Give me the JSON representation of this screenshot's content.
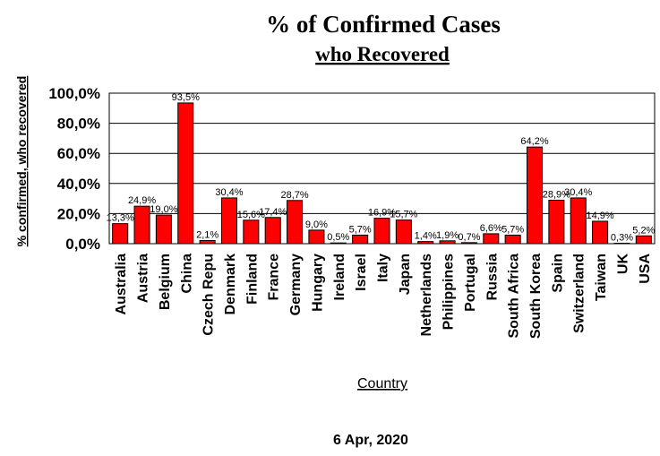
{
  "chart_data": {
    "type": "bar",
    "title": "% of Confirmed Cases",
    "subtitle": "who Recovered",
    "ylabel": "% confirmed, who recovered",
    "xlabel": "Country",
    "footer": "6 Apr, 2020",
    "ylim": [
      0,
      100
    ],
    "yticks": [
      "0,0%",
      "20,0%",
      "40,0%",
      "60,0%",
      "80,0%",
      "100,0%"
    ],
    "grid": true,
    "bar_color": "#ff0000",
    "categories": [
      "Australia",
      "Austria",
      "Belgium",
      "China",
      "Czech Repu",
      "Denmark",
      "Finland",
      "France",
      "Germany",
      "Hungary",
      "Ireland",
      "Israel",
      "Italy",
      "Japan",
      "Netherlands",
      "Philippines",
      "Portugal",
      "Russia",
      "South Africa",
      "South Korea",
      "Spain",
      "Switzerland",
      "Taiwan",
      "UK",
      "USA"
    ],
    "values": [
      13.3,
      24.9,
      19.0,
      93.5,
      2.1,
      30.4,
      15.6,
      17.4,
      28.7,
      9.0,
      0.5,
      5.7,
      16.9,
      15.7,
      1.4,
      1.9,
      0.7,
      6.6,
      5.7,
      64.2,
      28.9,
      30.4,
      14.9,
      0.3,
      5.2
    ],
    "labels": [
      "13,3%",
      "24,9%",
      "19,0%",
      "93,5%",
      "2,1%",
      "30,4%",
      "15,6%",
      "17,4%",
      "28,7%",
      "9,0%",
      "0,5%",
      "5,7%",
      "16,9%",
      "15,7%",
      "1,4%",
      "1,9%",
      "0,7%",
      "6,6%",
      "5,7%",
      "64,2%",
      "28,9%",
      "30,4%",
      "14,9%",
      "0,3%",
      "5,2%"
    ]
  }
}
